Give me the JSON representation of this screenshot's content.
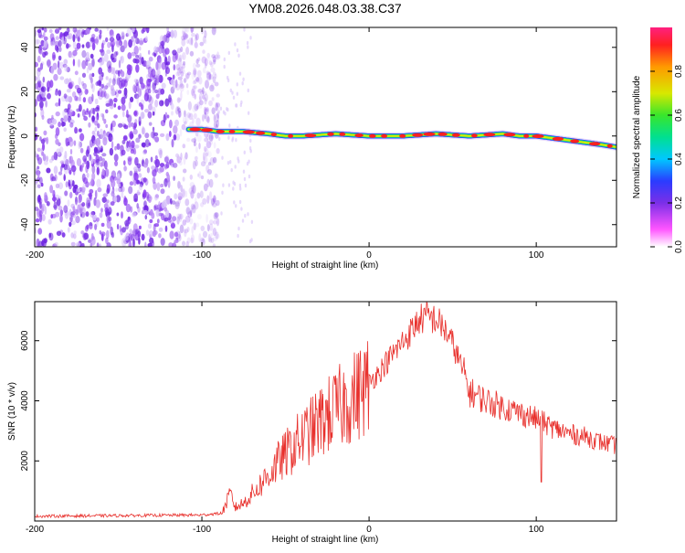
{
  "title": "YM08.2026.048.03.38.C37",
  "colors": {
    "snr_line": "#e8302c",
    "frame": "#000000",
    "colormap": [
      "#ffffff",
      "#ff55ff",
      "#7b2fe8",
      "#2a3cff",
      "#00c8ff",
      "#00e090",
      "#39e62b",
      "#d8e800",
      "#ff9a00",
      "#ff2020"
    ]
  },
  "chart_data": [
    {
      "type": "heatmap",
      "xlabel": "Height of straight line (km)",
      "ylabel": "Frequency (Hz)",
      "xlim": [
        -200,
        148
      ],
      "ylim": [
        -50,
        49
      ],
      "xticks": [
        -200,
        -100,
        0,
        100
      ],
      "yticks": [
        -40,
        -20,
        0,
        20,
        40
      ],
      "colorbar": {
        "label": "Normalized spectral amplitude",
        "range": [
          0,
          1
        ],
        "ticks": [
          "0.0",
          "0.2",
          "0.4",
          "0.6",
          "0.8"
        ]
      },
      "noise_region": {
        "x_from": -200,
        "x_to": -90,
        "y_from": -50,
        "y_to": 49,
        "amplitude": 0.2
      },
      "ridge": {
        "x": [
          -108,
          -100,
          -90,
          -75,
          -60,
          -50,
          -40,
          -20,
          0,
          20,
          40,
          60,
          80,
          90,
          100,
          110,
          120,
          130,
          140,
          148
        ],
        "y": [
          3,
          3,
          2,
          2,
          1,
          0,
          0,
          1,
          0,
          0,
          1,
          0,
          1,
          0,
          0,
          -1,
          -2,
          -3,
          -4,
          -5
        ]
      }
    },
    {
      "type": "line",
      "xlabel": "Height of straight line (km)",
      "ylabel": "SNR (10 * v/v)",
      "xlim": [
        -200,
        148
      ],
      "ylim": [
        0,
        7300
      ],
      "xticks": [
        -200,
        -100,
        0,
        100
      ],
      "yticks": [
        2000,
        4000,
        6000
      ],
      "series": [
        {
          "x": [
            -200,
            -150,
            -100,
            -88,
            -83,
            -80,
            -75,
            -65,
            -55,
            -45,
            -35,
            -25,
            -15,
            -5,
            5,
            15,
            25,
            30,
            35,
            40,
            45,
            50,
            55,
            60,
            70,
            80,
            90,
            100,
            110,
            120,
            130,
            140,
            148
          ],
          "y": [
            160,
            180,
            200,
            260,
            900,
            450,
            600,
            1200,
            1900,
            2500,
            3000,
            3500,
            3900,
            4300,
            4900,
            5600,
            6300,
            6700,
            6800,
            6700,
            6400,
            5900,
            5200,
            4300,
            4000,
            3800,
            3600,
            3400,
            3100,
            2900,
            2800,
            2600,
            2500
          ]
        }
      ]
    }
  ]
}
